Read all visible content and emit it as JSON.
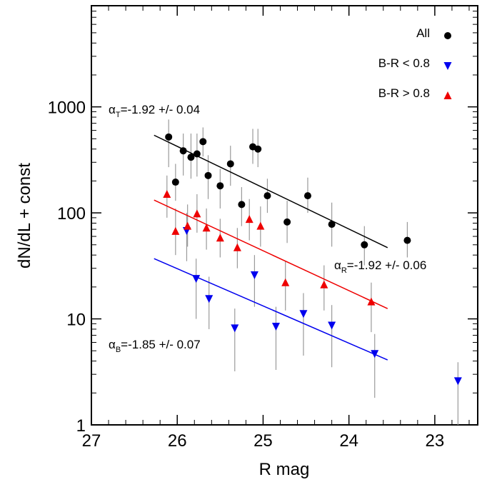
{
  "chart_data": {
    "type": "scatter",
    "xlabel": "R mag",
    "ylabel": "dN/dL + const",
    "xlim": [
      27.0,
      22.5
    ],
    "ylim": [
      1,
      9000
    ],
    "yscale": "log",
    "x_ticks": [
      "27",
      "26",
      "25",
      "24",
      "23"
    ],
    "y_ticks": [
      "1",
      "10",
      "100",
      "1000"
    ],
    "legend_position": "top-right",
    "series": [
      {
        "name": "All",
        "marker": "circle",
        "color": "#000000",
        "points": [
          {
            "x": 26.1,
            "y": 520,
            "lo": 270,
            "hi": 760
          },
          {
            "x": 26.02,
            "y": 195,
            "lo": 130,
            "hi": 290
          },
          {
            "x": 25.93,
            "y": 385,
            "lo": 225,
            "hi": 560
          },
          {
            "x": 25.84,
            "y": 335,
            "lo": 210,
            "hi": 560
          },
          {
            "x": 25.77,
            "y": 360,
            "lo": 220,
            "hi": 560
          },
          {
            "x": 25.7,
            "y": 470,
            "lo": 340,
            "hi": 640
          },
          {
            "x": 25.64,
            "y": 225,
            "lo": 135,
            "hi": 350
          },
          {
            "x": 25.5,
            "y": 180,
            "lo": 110,
            "hi": 260
          },
          {
            "x": 25.38,
            "y": 290,
            "lo": 180,
            "hi": 430
          },
          {
            "x": 25.25,
            "y": 120,
            "lo": 75,
            "hi": 175
          },
          {
            "x": 25.12,
            "y": 420,
            "lo": 290,
            "hi": 620
          },
          {
            "x": 25.06,
            "y": 400,
            "lo": 270,
            "hi": 620
          },
          {
            "x": 24.95,
            "y": 145,
            "lo": 100,
            "hi": 210
          },
          {
            "x": 24.72,
            "y": 82,
            "lo": 52,
            "hi": 130
          },
          {
            "x": 24.48,
            "y": 145,
            "lo": 100,
            "hi": 215
          },
          {
            "x": 24.2,
            "y": 78,
            "lo": 48,
            "hi": 125
          },
          {
            "x": 23.82,
            "y": 50,
            "lo": 32,
            "hi": 75
          },
          {
            "x": 23.32,
            "y": 55,
            "lo": 38,
            "hi": 82
          }
        ]
      },
      {
        "name": "B-R < 0.8",
        "marker": "triangle-down",
        "color": "#0000ee",
        "points": [
          {
            "x": 25.89,
            "y": 68,
            "lo": 35,
            "hi": 100
          },
          {
            "x": 25.78,
            "y": 24,
            "lo": 10,
            "hi": 37
          },
          {
            "x": 25.63,
            "y": 15.5,
            "lo": 8,
            "hi": 25
          },
          {
            "x": 25.33,
            "y": 8.2,
            "lo": 3.2,
            "hi": 12.5
          },
          {
            "x": 25.1,
            "y": 26,
            "lo": 13,
            "hi": 40
          },
          {
            "x": 24.85,
            "y": 8.5,
            "lo": 3.3,
            "hi": 13
          },
          {
            "x": 24.53,
            "y": 11.2,
            "lo": 4.5,
            "hi": 17.5
          },
          {
            "x": 24.2,
            "y": 8.7,
            "lo": 3.5,
            "hi": 13.5
          },
          {
            "x": 23.7,
            "y": 4.7,
            "lo": 1.8,
            "hi": 7.2
          },
          {
            "x": 22.73,
            "y": 2.6,
            "lo": 1.0,
            "hi": 3.9
          }
        ]
      },
      {
        "name": "B-R > 0.8",
        "marker": "triangle-up",
        "color": "#ee0000",
        "points": [
          {
            "x": 26.12,
            "y": 150,
            "lo": 90,
            "hi": 225
          },
          {
            "x": 26.02,
            "y": 67,
            "lo": 40,
            "hi": 110
          },
          {
            "x": 25.88,
            "y": 75,
            "lo": 48,
            "hi": 120
          },
          {
            "x": 25.77,
            "y": 98,
            "lo": 65,
            "hi": 150
          },
          {
            "x": 25.66,
            "y": 72,
            "lo": 45,
            "hi": 110
          },
          {
            "x": 25.5,
            "y": 58,
            "lo": 38,
            "hi": 88
          },
          {
            "x": 25.3,
            "y": 47,
            "lo": 30,
            "hi": 72
          },
          {
            "x": 25.16,
            "y": 87,
            "lo": 55,
            "hi": 135
          },
          {
            "x": 25.03,
            "y": 75,
            "lo": 48,
            "hi": 115
          },
          {
            "x": 24.74,
            "y": 22,
            "lo": 12,
            "hi": 35
          },
          {
            "x": 24.29,
            "y": 21,
            "lo": 12,
            "hi": 32
          },
          {
            "x": 23.74,
            "y": 14.5,
            "lo": 7.5,
            "hi": 22
          }
        ]
      }
    ],
    "fits": [
      {
        "color": "#000000",
        "x": [
          26.27,
          23.55
        ],
        "y": [
          540,
          47
        ]
      },
      {
        "color": "#ee0000",
        "x": [
          26.27,
          23.55
        ],
        "y": [
          132,
          12.5
        ]
      },
      {
        "color": "#0000ee",
        "x": [
          26.27,
          23.55
        ],
        "y": [
          37,
          4.1
        ]
      }
    ],
    "annotations": [
      {
        "symbol": "α",
        "sub": "T",
        "text": "=-1.92 +/- 0.04"
      },
      {
        "symbol": "α",
        "sub": "R",
        "text": "=-1.92 +/- 0.06"
      },
      {
        "symbol": "α",
        "sub": "B",
        "text": "=-1.85 +/- 0.07"
      }
    ]
  }
}
